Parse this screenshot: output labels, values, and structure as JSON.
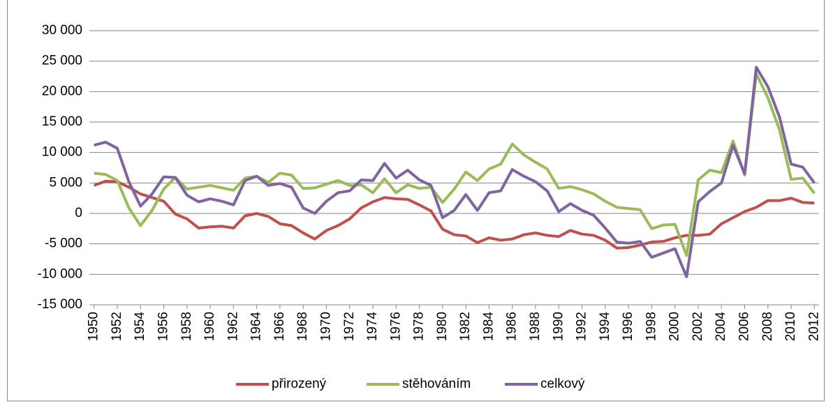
{
  "chart_data": {
    "type": "line",
    "x": [
      1950,
      1951,
      1952,
      1953,
      1954,
      1955,
      1956,
      1957,
      1958,
      1959,
      1960,
      1961,
      1962,
      1963,
      1964,
      1965,
      1966,
      1967,
      1968,
      1969,
      1970,
      1971,
      1972,
      1973,
      1974,
      1975,
      1976,
      1977,
      1978,
      1979,
      1980,
      1981,
      1982,
      1983,
      1984,
      1985,
      1986,
      1987,
      1988,
      1989,
      1990,
      1991,
      1992,
      1993,
      1994,
      1995,
      1996,
      1997,
      1998,
      1999,
      2000,
      2001,
      2002,
      2003,
      2004,
      2005,
      2006,
      2007,
      2008,
      2009,
      2010,
      2011,
      2012
    ],
    "xlim": [
      1949.6,
      2012.4
    ],
    "xticks": [
      1950,
      1952,
      1954,
      1956,
      1958,
      1960,
      1962,
      1964,
      1966,
      1968,
      1970,
      1972,
      1974,
      1976,
      1978,
      1980,
      1982,
      1984,
      1986,
      1988,
      1990,
      1992,
      1994,
      1996,
      1998,
      2000,
      2002,
      2004,
      2006,
      2008,
      2010,
      2012
    ],
    "ylim": [
      -15000,
      30000
    ],
    "yticks": [
      {
        "value": -15000,
        "label": "-15 000"
      },
      {
        "value": -10000,
        "label": "-10 000"
      },
      {
        "value": -5000,
        "label": "-5 000"
      },
      0,
      {
        "value": 5000,
        "label": "5 000"
      },
      {
        "value": 10000,
        "label": "10 000"
      },
      {
        "value": 15000,
        "label": "15 000"
      },
      {
        "value": 20000,
        "label": "20 000"
      },
      {
        "value": 25000,
        "label": "25 000"
      },
      {
        "value": 30000,
        "label": "30 000"
      }
    ],
    "grid": true,
    "legend": "bottom",
    "series": [
      {
        "name": "přirozený",
        "color": "#c0504d",
        "values": [
          4600,
          5300,
          5200,
          4300,
          3200,
          2600,
          2000,
          -100,
          -900,
          -2400,
          -2200,
          -2100,
          -2400,
          -400,
          0,
          -500,
          -1700,
          -2000,
          -3200,
          -4200,
          -2800,
          -2000,
          -900,
          900,
          1900,
          2600,
          2400,
          2300,
          1400,
          400,
          -2600,
          -3500,
          -3700,
          -4800,
          -4000,
          -4400,
          -4200,
          -3500,
          -3200,
          -3600,
          -3800,
          -2800,
          -3400,
          -3600,
          -4400,
          -5700,
          -5600,
          -5200,
          -4700,
          -4600,
          -4000,
          -3600,
          -3600,
          -3400,
          -1700,
          -700,
          300,
          1000,
          2100,
          2100,
          2500,
          1800,
          1700
        ]
      },
      {
        "name": "stěhováním",
        "color": "#9bbb59",
        "values": [
          6600,
          6400,
          5400,
          900,
          -2000,
          500,
          4000,
          5900,
          4000,
          4300,
          4600,
          4200,
          3800,
          5800,
          6100,
          5100,
          6600,
          6300,
          4100,
          4200,
          4800,
          5400,
          4600,
          4700,
          3400,
          5700,
          3400,
          4700,
          4100,
          4300,
          1800,
          4000,
          6800,
          5400,
          7300,
          8100,
          11400,
          9600,
          8400,
          7300,
          4100,
          4400,
          3900,
          3200,
          2000,
          1000,
          800,
          600,
          -2500,
          -1900,
          -1800,
          -6900,
          5500,
          7100,
          6700,
          11900,
          6300,
          22900,
          19000,
          13700,
          5600,
          5800,
          3300
        ]
      },
      {
        "name": "celkový",
        "color": "#8064a2",
        "values": [
          11200,
          11700,
          10700,
          5200,
          1200,
          3200,
          6000,
          5900,
          3000,
          1900,
          2400,
          2000,
          1400,
          5400,
          6100,
          4600,
          4900,
          4300,
          900,
          0,
          2000,
          3400,
          3700,
          5500,
          5400,
          8200,
          5800,
          7100,
          5500,
          4600,
          -700,
          500,
          3100,
          500,
          3400,
          3700,
          7200,
          6100,
          5200,
          3700,
          300,
          1600,
          500,
          -300,
          -2400,
          -4700,
          -4900,
          -4600,
          -7200,
          -6500,
          -5800,
          -10400,
          1900,
          3600,
          5000,
          11200,
          6500,
          24000,
          20800,
          15800,
          8100,
          7600,
          5000
        ]
      }
    ]
  }
}
